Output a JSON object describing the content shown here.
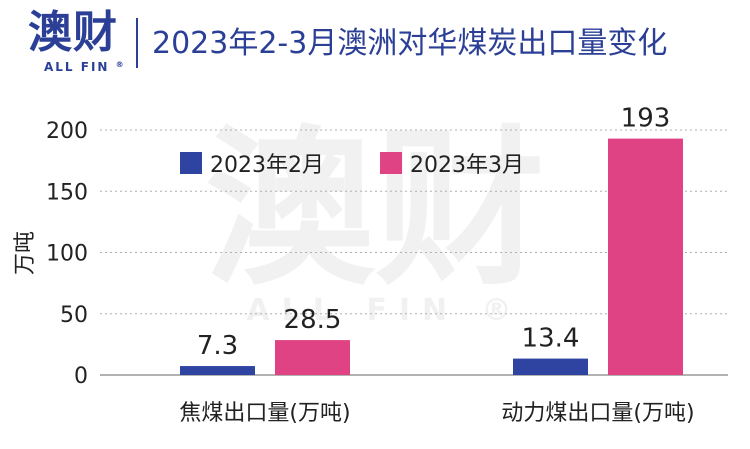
{
  "header": {
    "logo_cn": "澳财",
    "logo_en": "ALL FIN",
    "logo_mark": "®",
    "title": "2023年2-3月澳洲对华煤炭出口量变化"
  },
  "watermark": {
    "cn": "澳财",
    "en": "ALL FIN ®"
  },
  "colors": {
    "brand": "#2b3f97",
    "feb": "#2e44a0",
    "mar": "#e04384",
    "grid": "#b0b0b0",
    "axis": "#999999"
  },
  "chart_data": {
    "type": "bar",
    "title": "2023年2-3月澳洲对华煤炭出口量变化",
    "ylabel": "万吨",
    "xlabel": "",
    "ylim": [
      0,
      200
    ],
    "yticks": [
      0,
      50,
      100,
      150,
      200
    ],
    "grid": true,
    "legend_position": "top-left",
    "categories": [
      "焦煤出口量(万吨)",
      "动力煤出口量(万吨)"
    ],
    "series": [
      {
        "name": "2023年2月",
        "values": [
          7.3,
          13.4
        ],
        "labels": [
          "7.3",
          "13.4"
        ],
        "color": "#2e44a0"
      },
      {
        "name": "2023年3月",
        "values": [
          28.5,
          193
        ],
        "labels": [
          "28.5",
          "193"
        ],
        "color": "#e04384"
      }
    ]
  }
}
